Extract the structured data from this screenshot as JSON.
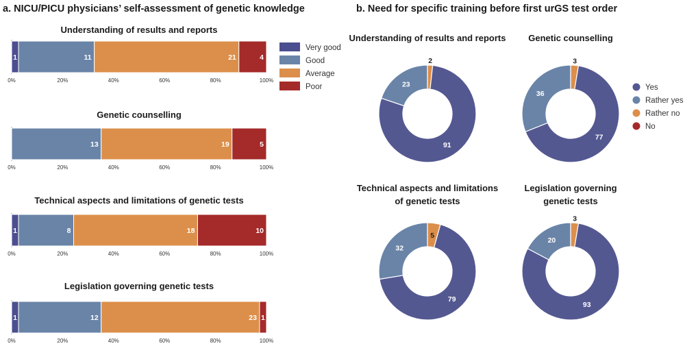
{
  "panel_a": {
    "title": "a. NICU/PICU physicians’ self-assessment of genetic knowledge"
  },
  "panel_b": {
    "title": "b. Need for specific training before first urGS test order"
  },
  "chart_data": [
    {
      "type": "bar",
      "orientation": "horizontal-stacked-100",
      "title": "Understanding of results and reports",
      "x_ticks": [
        "0%",
        "20%",
        "40%",
        "60%",
        "80%",
        "100%"
      ],
      "series": [
        {
          "name": "Very good",
          "values": [
            1
          ]
        },
        {
          "name": "Good",
          "values": [
            11
          ]
        },
        {
          "name": "Average",
          "values": [
            21
          ]
        },
        {
          "name": "Poor",
          "values": [
            4
          ]
        }
      ]
    },
    {
      "type": "bar",
      "orientation": "horizontal-stacked-100",
      "title": "Genetic counselling",
      "x_ticks": [
        "0%",
        "20%",
        "40%",
        "60%",
        "80%",
        "100%"
      ],
      "series": [
        {
          "name": "Very good",
          "values": [
            0
          ]
        },
        {
          "name": "Good",
          "values": [
            13
          ]
        },
        {
          "name": "Average",
          "values": [
            19
          ]
        },
        {
          "name": "Poor",
          "values": [
            5
          ]
        }
      ]
    },
    {
      "type": "bar",
      "orientation": "horizontal-stacked-100",
      "title": "Technical aspects and limitations of genetic tests",
      "x_ticks": [
        "0%",
        "20%",
        "40%",
        "60%",
        "80%",
        "100%"
      ],
      "series": [
        {
          "name": "Very good",
          "values": [
            1
          ]
        },
        {
          "name": "Good",
          "values": [
            8
          ]
        },
        {
          "name": "Average",
          "values": [
            18
          ]
        },
        {
          "name": "Poor",
          "values": [
            10
          ]
        }
      ]
    },
    {
      "type": "bar",
      "orientation": "horizontal-stacked-100",
      "title": "Legislation governing genetic tests",
      "x_ticks": [
        "0%",
        "20%",
        "40%",
        "60%",
        "80%",
        "100%"
      ],
      "series": [
        {
          "name": "Very good",
          "values": [
            1
          ]
        },
        {
          "name": "Good",
          "values": [
            12
          ]
        },
        {
          "name": "Average",
          "values": [
            23
          ]
        },
        {
          "name": "Poor",
          "values": [
            1
          ]
        }
      ]
    },
    {
      "type": "pie",
      "style": "donut",
      "title_lines": [
        "Understanding of results and reports"
      ],
      "labels": [
        "Yes",
        "Rather yes",
        "Rather no",
        "No"
      ],
      "values": [
        91,
        23,
        2,
        0
      ]
    },
    {
      "type": "pie",
      "style": "donut",
      "title_lines": [
        "Genetic counselling"
      ],
      "labels": [
        "Yes",
        "Rather yes",
        "Rather no",
        "No"
      ],
      "values": [
        77,
        36,
        3,
        0
      ]
    },
    {
      "type": "pie",
      "style": "donut",
      "title_lines": [
        "Technical aspects and limitations",
        "of genetic tests"
      ],
      "labels": [
        "Yes",
        "Rather yes",
        "Rather no",
        "No"
      ],
      "values": [
        79,
        32,
        5,
        0
      ]
    },
    {
      "type": "pie",
      "style": "donut",
      "title_lines": [
        "Legislation governing",
        "genetic tests"
      ],
      "labels": [
        "Yes",
        "Rather yes",
        "Rather no",
        "No"
      ],
      "values": [
        93,
        20,
        3,
        0
      ]
    }
  ],
  "legend_a": [
    {
      "label": "Very good",
      "color": "#4b4f8f"
    },
    {
      "label": "Good",
      "color": "#6a84a8"
    },
    {
      "label": "Average",
      "color": "#dc8f4b"
    },
    {
      "label": "Poor",
      "color": "#a52a2a"
    }
  ],
  "legend_b": [
    {
      "label": "Yes",
      "color": "#545891"
    },
    {
      "label": "Rather yes",
      "color": "#6a84a8"
    },
    {
      "label": "Rather no",
      "color": "#dc8f4b"
    },
    {
      "label": "No",
      "color": "#a52a2a"
    }
  ]
}
